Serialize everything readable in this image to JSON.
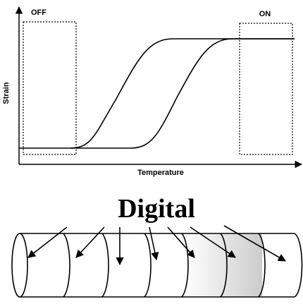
{
  "diagram": {
    "off_label": "OFF",
    "on_label": "ON",
    "y_axis_label": "Strain",
    "x_axis_label": "Temperature",
    "caption": "Digital"
  }
}
